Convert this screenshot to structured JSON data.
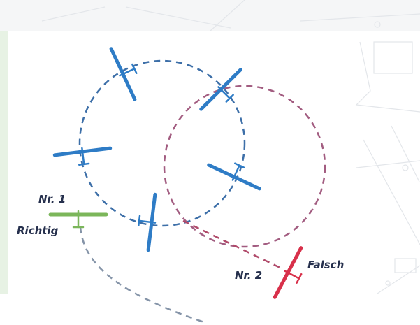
{
  "labels": {
    "nr1": "Nr. 1",
    "richtig": "Richtig",
    "nr2": "Nr. 2",
    "falsch": "Falsch"
  }
}
